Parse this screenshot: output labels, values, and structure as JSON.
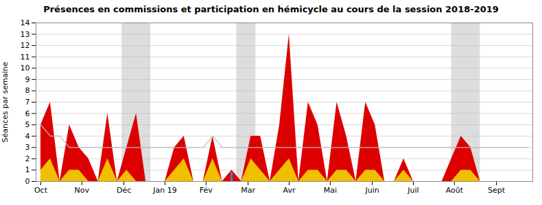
{
  "chart_data": {
    "type": "area",
    "title": "Présences en commissions et participation en hémicycle au cours de la session 2018-2019",
    "ylabel": "Séances par semaine",
    "xlim": [
      -0.5,
      51.5
    ],
    "xticks": [
      {
        "value": 0,
        "label": "Oct"
      },
      {
        "value": 4.3,
        "label": "Nov"
      },
      {
        "value": 8.7,
        "label": "Déc"
      },
      {
        "value": 13.0,
        "label": "Jan 19"
      },
      {
        "value": 17.3,
        "label": "Fév"
      },
      {
        "value": 21.7,
        "label": "Mar"
      },
      {
        "value": 26.0,
        "label": "Avr"
      },
      {
        "value": 30.3,
        "label": "Mai"
      },
      {
        "value": 34.7,
        "label": "Juin"
      },
      {
        "value": 39.0,
        "label": "Juil"
      },
      {
        "value": 43.3,
        "label": "Août"
      },
      {
        "value": 47.7,
        "label": "Sept"
      }
    ],
    "ylim": [
      0,
      14
    ],
    "yticks": [
      0,
      1,
      2,
      3,
      4,
      5,
      6,
      7,
      8,
      9,
      10,
      11,
      12,
      13,
      14
    ],
    "grid": true,
    "shaded_regions": [
      [
        8.5,
        11.5
      ],
      [
        20.5,
        22.5
      ],
      [
        43.0,
        46.0
      ]
    ],
    "series": [
      {
        "type": "area",
        "color": "#dd0000",
        "values": [
          5,
          7,
          0,
          5,
          3,
          2,
          0,
          6,
          0,
          3,
          6,
          0,
          0,
          0,
          3,
          4,
          0,
          0,
          4,
          0,
          1,
          0,
          4,
          4,
          0,
          5,
          13,
          0,
          7,
          5,
          0,
          7,
          4,
          0,
          7,
          5,
          0,
          0,
          2,
          0,
          0,
          0,
          0,
          2,
          4,
          3,
          0,
          0,
          0,
          0,
          0,
          0
        ]
      },
      {
        "type": "area",
        "color": "#f0c000",
        "values": [
          1,
          2,
          0,
          1,
          1,
          0,
          0,
          2,
          0,
          1,
          0,
          0,
          0,
          0,
          1,
          2,
          0,
          0,
          2,
          0,
          0,
          0,
          2,
          1,
          0,
          1,
          2,
          0,
          1,
          1,
          0,
          1,
          1,
          0,
          1,
          1,
          0,
          0,
          1,
          0,
          0,
          0,
          0,
          0,
          1,
          1,
          0,
          0,
          0,
          0,
          0,
          0
        ]
      },
      {
        "type": "line",
        "color": "#bbbbbb",
        "values": [
          5,
          4,
          4,
          3,
          3,
          3,
          3,
          3,
          3,
          3,
          3,
          3,
          3,
          3,
          3,
          3,
          3,
          3,
          4,
          3,
          3,
          3,
          3,
          3,
          3,
          3,
          3,
          3,
          3,
          3,
          3,
          3,
          3,
          3,
          3,
          3,
          3,
          3,
          3,
          3,
          3,
          3,
          3,
          3,
          3,
          3,
          3,
          3,
          3,
          3,
          3,
          3
        ]
      },
      {
        "type": "bar",
        "color": "#5577cc",
        "values": [
          null,
          null,
          null,
          null,
          null,
          null,
          null,
          null,
          null,
          null,
          null,
          null,
          null,
          null,
          null,
          null,
          null,
          null,
          null,
          null,
          0.8,
          null,
          null,
          null,
          null,
          null,
          null,
          null,
          null,
          null,
          null,
          null,
          null,
          null,
          null,
          null,
          null,
          null,
          null,
          null,
          null,
          null,
          null,
          null,
          null,
          null,
          null,
          null,
          null,
          null,
          null,
          null
        ]
      }
    ]
  }
}
